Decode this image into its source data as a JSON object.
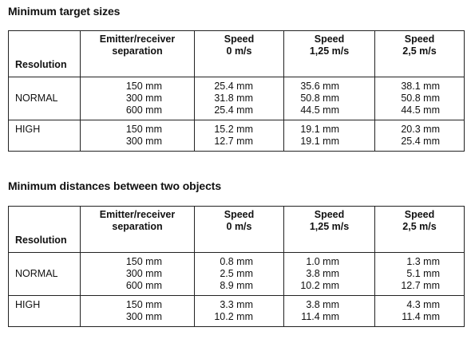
{
  "tables": [
    {
      "title": "Minimum target sizes",
      "headers": {
        "resolution": "Resolution",
        "separation": [
          "Emitter/receiver",
          "separation"
        ],
        "speed0": [
          "Speed",
          "0 m/s"
        ],
        "speed1": [
          "Speed",
          "1,25 m/s"
        ],
        "speed2": [
          "Speed",
          "2,5 m/s"
        ]
      },
      "groups": [
        {
          "label": "NORMAL",
          "rows": [
            [
              "150 mm",
              "25.4 mm",
              "35.6 mm",
              "38.1 mm"
            ],
            [
              "300 mm",
              "31.8 mm",
              "50.8 mm",
              "50.8 mm"
            ],
            [
              "600 mm",
              "25.4 mm",
              "44.5 mm",
              "44.5 mm"
            ]
          ]
        },
        {
          "label": "HIGH",
          "rows": [
            [
              "150 mm",
              "15.2 mm",
              "19.1 mm",
              "20.3 mm"
            ],
            [
              "300 mm",
              "12.7 mm",
              "19.1 mm",
              "25.4 mm"
            ]
          ]
        }
      ]
    },
    {
      "title": "Minimum distances between two objects",
      "headers": {
        "resolution": "Resolution",
        "separation": [
          "Emitter/receiver",
          "separation"
        ],
        "speed0": [
          "Speed",
          "0 m/s"
        ],
        "speed1": [
          "Speed",
          "1,25 m/s"
        ],
        "speed2": [
          "Speed",
          "2,5 m/s"
        ]
      },
      "groups": [
        {
          "label": "NORMAL",
          "rows": [
            [
              "150 mm",
              "0.8 mm",
              "1.0 mm",
              "1.3 mm"
            ],
            [
              "300 mm",
              "2.5 mm",
              "3.8 mm",
              "5.1 mm"
            ],
            [
              "600 mm",
              "8.9 mm",
              "10.2 mm",
              "12.7 mm"
            ]
          ]
        },
        {
          "label": "HIGH",
          "rows": [
            [
              "150 mm",
              "3.3 mm",
              "3.8 mm",
              "4.3 mm"
            ],
            [
              "300 mm",
              "10.2 mm",
              "11.4 mm",
              "11.4 mm"
            ]
          ]
        }
      ]
    }
  ]
}
